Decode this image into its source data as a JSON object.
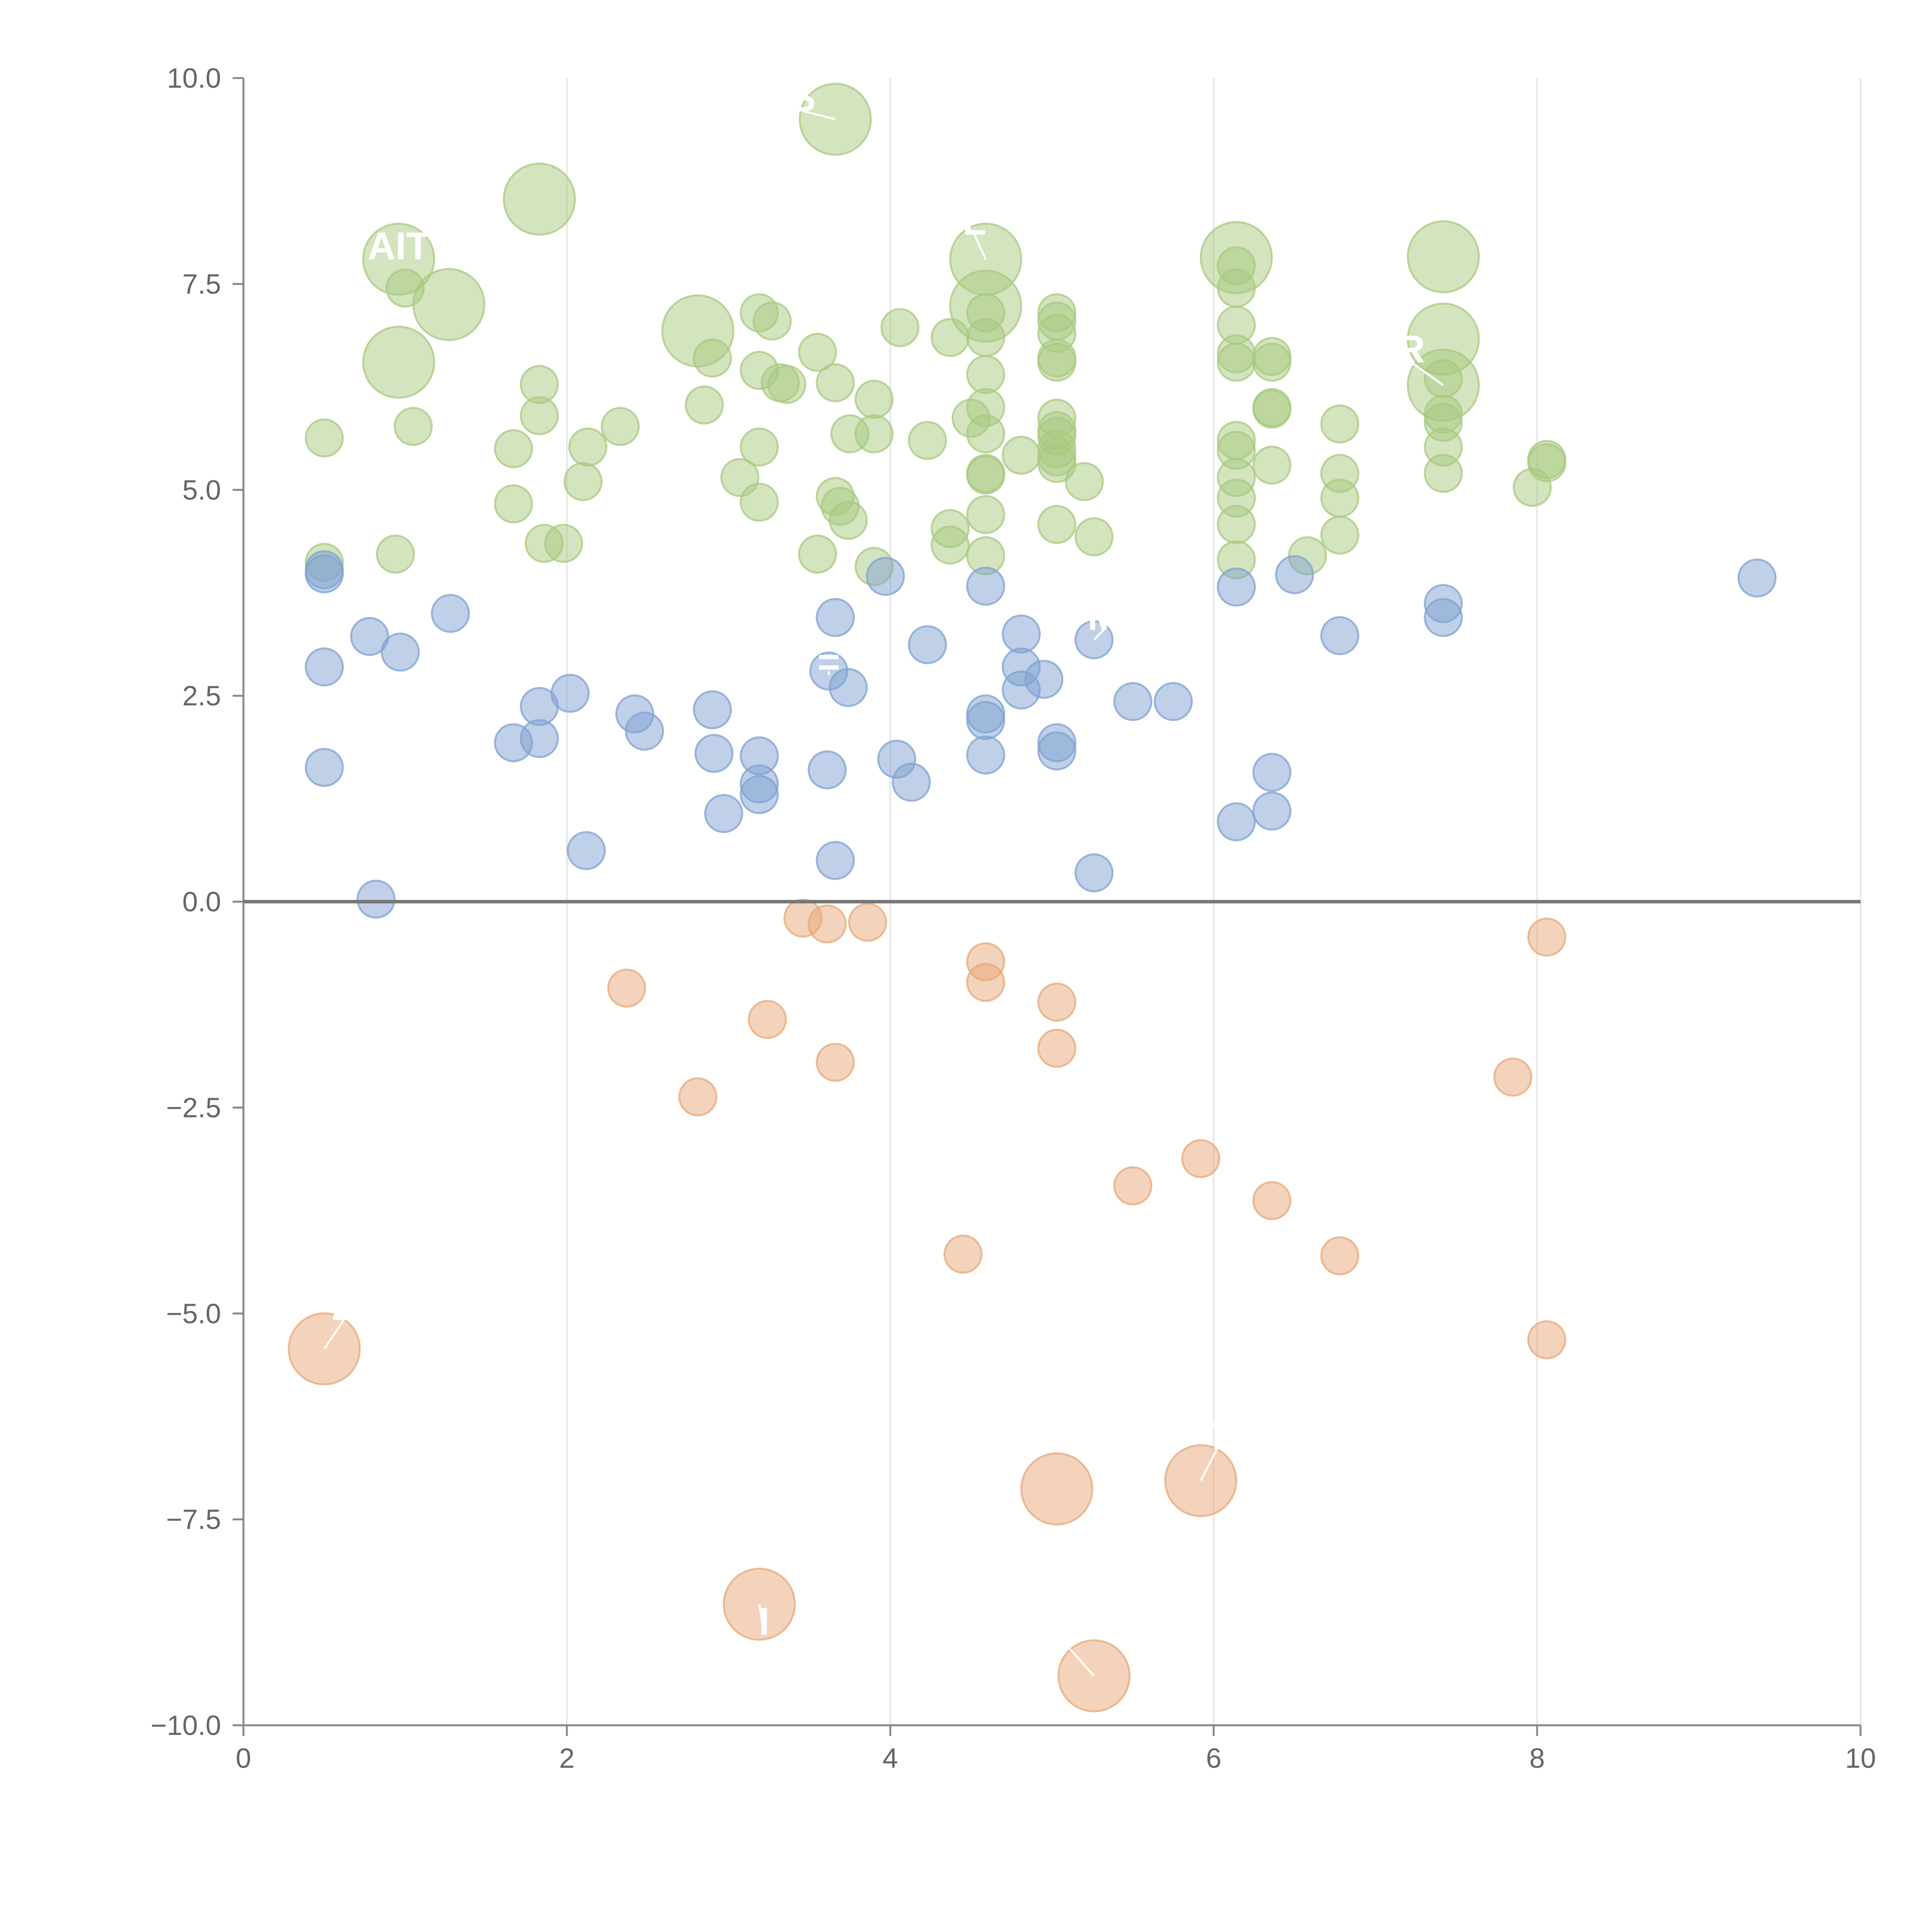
{
  "chart_data": {
    "type": "scatter",
    "title": "",
    "xlabel": "",
    "ylabel": "",
    "xlim": [
      0,
      10
    ],
    "ylim": [
      -10,
      10
    ],
    "x_ticks": [
      0,
      2,
      4,
      6,
      8,
      10
    ],
    "y_ticks": [
      -10,
      -7.5,
      -5,
      -2.5,
      0,
      2.5,
      5,
      7.5,
      10
    ],
    "x_tick_labels": [
      "0",
      "2",
      "4",
      "6",
      "8",
      "10"
    ],
    "y_tick_labels": [
      "−10.0",
      "−7.5",
      "−5.0",
      "−2.5",
      "0.0",
      "2.5",
      "5.0",
      "7.5",
      "10.0"
    ],
    "vertical_grid": true,
    "horizontal_grid": false,
    "zero_line": true,
    "series": [
      {
        "name": "green",
        "color": "#A8C97F",
        "points": [
          {
            "x": 3.66,
            "y": 9.5,
            "r": "large"
          },
          {
            "x": 1.83,
            "y": 8.53,
            "r": "large"
          },
          {
            "x": 0.96,
            "y": 7.8,
            "r": "large"
          },
          {
            "x": 1.27,
            "y": 7.25,
            "r": "large"
          },
          {
            "x": 0.96,
            "y": 6.55,
            "r": "large"
          },
          {
            "x": 2.81,
            "y": 6.93,
            "r": "large"
          },
          {
            "x": 4.59,
            "y": 7.8,
            "r": "large"
          },
          {
            "x": 4.59,
            "y": 7.23,
            "r": "large"
          },
          {
            "x": 6.14,
            "y": 7.82,
            "r": "large"
          },
          {
            "x": 7.42,
            "y": 7.83,
            "r": "large"
          },
          {
            "x": 7.42,
            "y": 6.83,
            "r": "large"
          },
          {
            "x": 7.42,
            "y": 6.27,
            "r": "large"
          },
          {
            "x": 1.0,
            "y": 7.45,
            "r": "small"
          },
          {
            "x": 3.19,
            "y": 7.15,
            "r": "small"
          },
          {
            "x": 3.27,
            "y": 7.05,
            "r": "small"
          },
          {
            "x": 4.06,
            "y": 6.97,
            "r": "small"
          },
          {
            "x": 4.59,
            "y": 7.15,
            "r": "small"
          },
          {
            "x": 5.03,
            "y": 7.15,
            "r": "small"
          },
          {
            "x": 5.03,
            "y": 7.05,
            "r": "small"
          },
          {
            "x": 6.14,
            "y": 7.72,
            "r": "small"
          },
          {
            "x": 6.14,
            "y": 7.45,
            "r": "small"
          },
          {
            "x": 6.14,
            "y": 7.0,
            "r": "small"
          },
          {
            "x": 4.37,
            "y": 6.85,
            "r": "small"
          },
          {
            "x": 4.59,
            "y": 6.85,
            "r": "small"
          },
          {
            "x": 5.03,
            "y": 6.9,
            "r": "small"
          },
          {
            "x": 2.9,
            "y": 6.6,
            "r": "small"
          },
          {
            "x": 3.55,
            "y": 6.67,
            "r": "small"
          },
          {
            "x": 6.14,
            "y": 6.65,
            "r": "small"
          },
          {
            "x": 6.14,
            "y": 6.55,
            "r": "small"
          },
          {
            "x": 6.36,
            "y": 6.62,
            "r": "small"
          },
          {
            "x": 6.36,
            "y": 6.55,
            "r": "small"
          },
          {
            "x": 5.03,
            "y": 6.6,
            "r": "small"
          },
          {
            "x": 5.03,
            "y": 6.55,
            "r": "small"
          },
          {
            "x": 3.19,
            "y": 6.45,
            "r": "small"
          },
          {
            "x": 4.59,
            "y": 6.4,
            "r": "small"
          },
          {
            "x": 7.42,
            "y": 6.35,
            "r": "small"
          },
          {
            "x": 1.83,
            "y": 6.28,
            "r": "small"
          },
          {
            "x": 3.32,
            "y": 6.3,
            "r": "small"
          },
          {
            "x": 3.36,
            "y": 6.28,
            "r": "small"
          },
          {
            "x": 3.66,
            "y": 6.3,
            "r": "small"
          },
          {
            "x": 3.9,
            "y": 6.1,
            "r": "small"
          },
          {
            "x": 2.85,
            "y": 6.03,
            "r": "small"
          },
          {
            "x": 4.59,
            "y": 6.0,
            "r": "small"
          },
          {
            "x": 6.36,
            "y": 6.0,
            "r": "small"
          },
          {
            "x": 6.36,
            "y": 5.98,
            "r": "small"
          },
          {
            "x": 1.83,
            "y": 5.9,
            "r": "small"
          },
          {
            "x": 4.5,
            "y": 5.87,
            "r": "small"
          },
          {
            "x": 5.03,
            "y": 5.87,
            "r": "small"
          },
          {
            "x": 7.42,
            "y": 5.92,
            "r": "small"
          },
          {
            "x": 7.42,
            "y": 5.82,
            "r": "small"
          },
          {
            "x": 6.78,
            "y": 5.8,
            "r": "small"
          },
          {
            "x": 1.05,
            "y": 5.77,
            "r": "small"
          },
          {
            "x": 2.33,
            "y": 5.77,
            "r": "small"
          },
          {
            "x": 5.03,
            "y": 5.72,
            "r": "small"
          },
          {
            "x": 5.03,
            "y": 5.65,
            "r": "small"
          },
          {
            "x": 0.5,
            "y": 5.63,
            "r": "small"
          },
          {
            "x": 3.75,
            "y": 5.68,
            "r": "small"
          },
          {
            "x": 3.9,
            "y": 5.68,
            "r": "small"
          },
          {
            "x": 4.59,
            "y": 5.68,
            "r": "small"
          },
          {
            "x": 4.23,
            "y": 5.6,
            "r": "small"
          },
          {
            "x": 6.14,
            "y": 5.6,
            "r": "small"
          },
          {
            "x": 6.14,
            "y": 5.48,
            "r": "small"
          },
          {
            "x": 7.42,
            "y": 5.52,
            "r": "small"
          },
          {
            "x": 1.67,
            "y": 5.5,
            "r": "small"
          },
          {
            "x": 2.13,
            "y": 5.52,
            "r": "small"
          },
          {
            "x": 3.19,
            "y": 5.52,
            "r": "small"
          },
          {
            "x": 5.03,
            "y": 5.5,
            "r": "small"
          },
          {
            "x": 5.03,
            "y": 5.4,
            "r": "small"
          },
          {
            "x": 4.81,
            "y": 5.42,
            "r": "small"
          },
          {
            "x": 5.03,
            "y": 5.32,
            "r": "small"
          },
          {
            "x": 8.06,
            "y": 5.37,
            "r": "small"
          },
          {
            "x": 8.06,
            "y": 5.33,
            "r": "small"
          },
          {
            "x": 6.36,
            "y": 5.3,
            "r": "small"
          },
          {
            "x": 6.78,
            "y": 5.2,
            "r": "small"
          },
          {
            "x": 7.42,
            "y": 5.2,
            "r": "small"
          },
          {
            "x": 3.07,
            "y": 5.15,
            "r": "small"
          },
          {
            "x": 4.59,
            "y": 5.2,
            "r": "small"
          },
          {
            "x": 4.59,
            "y": 5.18,
            "r": "small"
          },
          {
            "x": 6.14,
            "y": 5.15,
            "r": "small"
          },
          {
            "x": 2.1,
            "y": 5.1,
            "r": "small"
          },
          {
            "x": 5.2,
            "y": 5.1,
            "r": "small"
          },
          {
            "x": 7.97,
            "y": 5.03,
            "r": "small"
          },
          {
            "x": 3.66,
            "y": 4.92,
            "r": "small"
          },
          {
            "x": 6.14,
            "y": 4.9,
            "r": "small"
          },
          {
            "x": 6.78,
            "y": 4.9,
            "r": "small"
          },
          {
            "x": 1.67,
            "y": 4.83,
            "r": "small"
          },
          {
            "x": 3.19,
            "y": 4.85,
            "r": "small"
          },
          {
            "x": 3.69,
            "y": 4.8,
            "r": "small"
          },
          {
            "x": 4.59,
            "y": 4.7,
            "r": "small"
          },
          {
            "x": 3.74,
            "y": 4.63,
            "r": "small"
          },
          {
            "x": 5.03,
            "y": 4.58,
            "r": "small"
          },
          {
            "x": 6.14,
            "y": 4.58,
            "r": "small"
          },
          {
            "x": 4.37,
            "y": 4.53,
            "r": "small"
          },
          {
            "x": 5.26,
            "y": 4.43,
            "r": "small"
          },
          {
            "x": 6.78,
            "y": 4.45,
            "r": "small"
          },
          {
            "x": 1.86,
            "y": 4.35,
            "r": "small"
          },
          {
            "x": 1.98,
            "y": 4.35,
            "r": "small"
          },
          {
            "x": 4.37,
            "y": 4.33,
            "r": "small"
          },
          {
            "x": 0.94,
            "y": 4.22,
            "r": "small"
          },
          {
            "x": 3.55,
            "y": 4.22,
            "r": "small"
          },
          {
            "x": 4.59,
            "y": 4.2,
            "r": "small"
          },
          {
            "x": 6.58,
            "y": 4.2,
            "r": "small"
          },
          {
            "x": 6.14,
            "y": 4.15,
            "r": "small"
          },
          {
            "x": 0.5,
            "y": 4.12,
            "r": "small"
          },
          {
            "x": 3.9,
            "y": 4.07,
            "r": "small"
          }
        ]
      },
      {
        "name": "blue",
        "color": "#7FA2D2",
        "points": [
          {
            "x": 0.5,
            "y": 4.03
          },
          {
            "x": 0.5,
            "y": 3.98
          },
          {
            "x": 3.97,
            "y": 3.95
          },
          {
            "x": 6.5,
            "y": 3.97
          },
          {
            "x": 9.36,
            "y": 3.93
          },
          {
            "x": 4.59,
            "y": 3.83
          },
          {
            "x": 6.14,
            "y": 3.82
          },
          {
            "x": 7.42,
            "y": 3.62
          },
          {
            "x": 1.28,
            "y": 3.5
          },
          {
            "x": 3.66,
            "y": 3.45
          },
          {
            "x": 7.42,
            "y": 3.45
          },
          {
            "x": 0.78,
            "y": 3.22
          },
          {
            "x": 4.81,
            "y": 3.25
          },
          {
            "x": 6.78,
            "y": 3.23
          },
          {
            "x": 5.26,
            "y": 3.18
          },
          {
            "x": 4.23,
            "y": 3.12
          },
          {
            "x": 0.97,
            "y": 3.03
          },
          {
            "x": 0.5,
            "y": 2.85
          },
          {
            "x": 4.81,
            "y": 2.85
          },
          {
            "x": 3.62,
            "y": 2.8
          },
          {
            "x": 4.95,
            "y": 2.7
          },
          {
            "x": 3.74,
            "y": 2.6
          },
          {
            "x": 4.81,
            "y": 2.57
          },
          {
            "x": 2.02,
            "y": 2.53
          },
          {
            "x": 5.5,
            "y": 2.43
          },
          {
            "x": 5.75,
            "y": 2.43
          },
          {
            "x": 1.83,
            "y": 2.37
          },
          {
            "x": 2.9,
            "y": 2.33
          },
          {
            "x": 2.42,
            "y": 2.28
          },
          {
            "x": 4.59,
            "y": 2.28
          },
          {
            "x": 4.59,
            "y": 2.2
          },
          {
            "x": 2.48,
            "y": 2.07
          },
          {
            "x": 1.83,
            "y": 1.98
          },
          {
            "x": 1.67,
            "y": 1.93
          },
          {
            "x": 5.03,
            "y": 1.93
          },
          {
            "x": 5.03,
            "y": 1.83
          },
          {
            "x": 2.91,
            "y": 1.8
          },
          {
            "x": 4.59,
            "y": 1.78
          },
          {
            "x": 3.19,
            "y": 1.77
          },
          {
            "x": 4.04,
            "y": 1.73
          },
          {
            "x": 0.5,
            "y": 1.63
          },
          {
            "x": 3.61,
            "y": 1.6
          },
          {
            "x": 6.36,
            "y": 1.57
          },
          {
            "x": 4.13,
            "y": 1.45
          },
          {
            "x": 3.19,
            "y": 1.43
          },
          {
            "x": 3.19,
            "y": 1.3
          },
          {
            "x": 6.36,
            "y": 1.1
          },
          {
            "x": 2.97,
            "y": 1.07
          },
          {
            "x": 6.14,
            "y": 0.97
          },
          {
            "x": 2.12,
            "y": 0.62
          },
          {
            "x": 3.66,
            "y": 0.5
          },
          {
            "x": 5.26,
            "y": 0.35
          },
          {
            "x": 0.82,
            "y": 0.03
          }
        ]
      },
      {
        "name": "orange",
        "color": "#E8A878",
        "points": [
          {
            "x": 3.46,
            "y": -0.2,
            "r": "small"
          },
          {
            "x": 3.61,
            "y": -0.27,
            "r": "small"
          },
          {
            "x": 3.86,
            "y": -0.25,
            "r": "small"
          },
          {
            "x": 8.06,
            "y": -0.43,
            "r": "small"
          },
          {
            "x": 4.59,
            "y": -0.73,
            "r": "small"
          },
          {
            "x": 4.59,
            "y": -0.98,
            "r": "small"
          },
          {
            "x": 2.37,
            "y": -1.05,
            "r": "small"
          },
          {
            "x": 5.03,
            "y": -1.22,
            "r": "small"
          },
          {
            "x": 3.24,
            "y": -1.43,
            "r": "small"
          },
          {
            "x": 5.03,
            "y": -1.78,
            "r": "small"
          },
          {
            "x": 3.66,
            "y": -1.95,
            "r": "small"
          },
          {
            "x": 7.85,
            "y": -2.13,
            "r": "small"
          },
          {
            "x": 2.81,
            "y": -2.37,
            "r": "small"
          },
          {
            "x": 5.92,
            "y": -3.12,
            "r": "small"
          },
          {
            "x": 5.5,
            "y": -3.45,
            "r": "small"
          },
          {
            "x": 6.36,
            "y": -3.63,
            "r": "small"
          },
          {
            "x": 4.45,
            "y": -4.28,
            "r": "small"
          },
          {
            "x": 6.78,
            "y": -4.3,
            "r": "small"
          },
          {
            "x": 8.06,
            "y": -5.32,
            "r": "small"
          },
          {
            "x": 0.5,
            "y": -5.43,
            "r": "large"
          },
          {
            "x": 5.92,
            "y": -7.03,
            "r": "large"
          },
          {
            "x": 5.03,
            "y": -7.13,
            "r": "large"
          },
          {
            "x": 3.19,
            "y": -8.53,
            "r": "large"
          },
          {
            "x": 5.26,
            "y": -9.4,
            "r": "large"
          }
        ]
      }
    ],
    "annotations": [
      {
        "text": "AIT",
        "x": 0.96,
        "y": 7.8,
        "tx": 0.96,
        "ty": 7.8
      },
      {
        "text": "S",
        "x": 3.66,
        "y": 9.5,
        "tx": 3.46,
        "ty": 9.6
      },
      {
        "text": "L",
        "x": 4.59,
        "y": 7.8,
        "tx": 4.52,
        "ty": 8.1
      },
      {
        "text": "R",
        "x": 7.42,
        "y": 6.27,
        "tx": 7.22,
        "ty": 6.55
      },
      {
        "text": "M",
        "x": 5.26,
        "y": 3.18,
        "tx": 5.32,
        "ty": 3.3
      },
      {
        "text": "=",
        "x": 3.62,
        "y": 2.8,
        "tx": 3.62,
        "ty": 2.75
      },
      {
        "text": "Z",
        "x": 0.5,
        "y": -5.43,
        "tx": 0.62,
        "ty": -5.08
      },
      {
        "text": "T",
        "x": 5.92,
        "y": -7.03,
        "tx": 6.02,
        "ty": -6.65
      },
      {
        "text": "I",
        "x": 5.26,
        "y": -9.4,
        "tx": 5.1,
        "ty": -9.05
      },
      {
        "text": "I",
        "x": 3.19,
        "y": -8.53,
        "tx": 3.22,
        "ty": -8.9
      }
    ]
  }
}
